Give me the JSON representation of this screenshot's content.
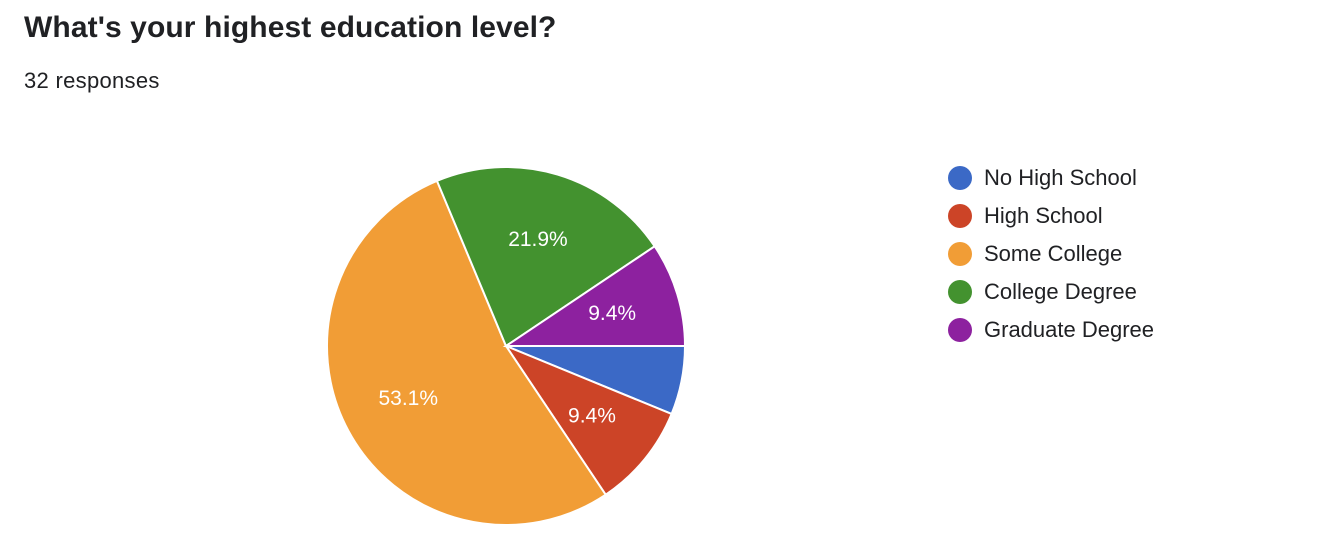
{
  "question": {
    "title": "What's your highest education level?",
    "responses": "32 responses"
  },
  "chart_data": {
    "type": "pie",
    "title": "What's your highest education level?",
    "slices": [
      {
        "label": "No High School",
        "value": 6.2,
        "color": "#3b69c6",
        "display": ""
      },
      {
        "label": "High School",
        "value": 9.4,
        "color": "#cc4427",
        "display": "9.4%"
      },
      {
        "label": "Some College",
        "value": 53.1,
        "color": "#f19d36",
        "display": "53.1%"
      },
      {
        "label": "College Degree",
        "value": 21.9,
        "color": "#43922f",
        "display": "21.9%"
      },
      {
        "label": "Graduate Degree",
        "value": 9.4,
        "color": "#8d219f",
        "display": "9.4%"
      }
    ],
    "start": "east",
    "direction": "clockwise",
    "legend_position": "right"
  }
}
